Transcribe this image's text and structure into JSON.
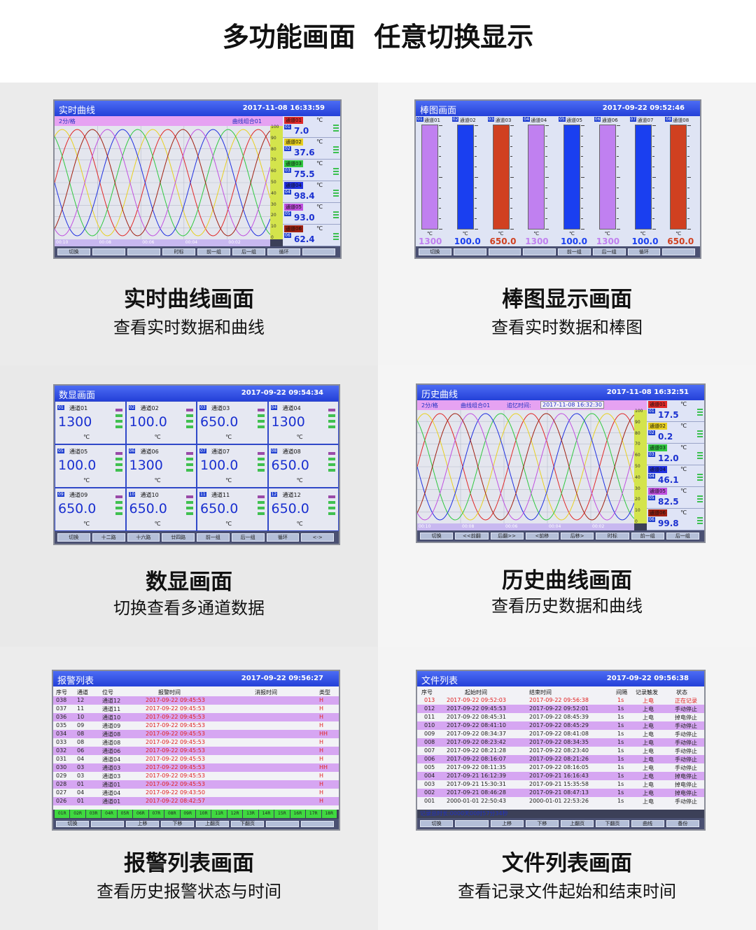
{
  "header": {
    "title": "多功能画面  任意切换显示"
  },
  "panels": [
    {
      "caption": "实时曲线画面",
      "subcaption": "查看实时数据和曲线",
      "screen": {
        "title": "实时曲线",
        "datetime": "2017-11-08 16:33:59",
        "grid_label": "2分/格",
        "group": "曲线组合01",
        "scale": [
          100,
          90,
          80,
          70,
          60,
          50,
          40,
          30,
          20,
          10,
          0
        ],
        "times": [
          "00:10",
          "00:08",
          "00:06",
          "00:04",
          "00:02"
        ],
        "channels": [
          {
            "number": "01",
            "name": "通道01",
            "unit": "℃",
            "value": "7.0",
            "color": "#e02828"
          },
          {
            "number": "02",
            "name": "通道02",
            "unit": "℃",
            "value": "37.6",
            "color": "#e8d020"
          },
          {
            "number": "03",
            "name": "通道03",
            "unit": "℃",
            "value": "75.5",
            "color": "#30c840"
          },
          {
            "number": "04",
            "name": "通道04",
            "unit": "℃",
            "value": "98.4",
            "color": "#2030e0"
          },
          {
            "number": "05",
            "name": "通道05",
            "unit": "℃",
            "value": "93.0",
            "color": "#c050e0"
          },
          {
            "number": "06",
            "name": "通道06",
            "unit": "℃",
            "value": "62.4",
            "color": "#a02010"
          }
        ],
        "buttons": [
          "切换",
          "时标",
          "前一组",
          "后一组",
          "循环"
        ]
      }
    },
    {
      "caption": "棒图显示画面",
      "subcaption": "查看实时数据和棒图",
      "screen": {
        "title": "棒图画面",
        "datetime": "2017-09-22 09:52:46",
        "channels": [
          {
            "number": "01",
            "name": "通道01",
            "unit": "℃",
            "value": "1300",
            "color": "#c080f0"
          },
          {
            "number": "02",
            "name": "通道02",
            "unit": "℃",
            "value": "100.0",
            "color": "#1a3ff0"
          },
          {
            "number": "03",
            "name": "通道03",
            "unit": "℃",
            "value": "650.0",
            "color": "#d04020"
          },
          {
            "number": "04",
            "name": "通道04",
            "unit": "℃",
            "value": "1300",
            "color": "#c080f0"
          },
          {
            "number": "05",
            "name": "通道05",
            "unit": "℃",
            "value": "100.0",
            "color": "#1a3ff0"
          },
          {
            "number": "06",
            "name": "通道06",
            "unit": "℃",
            "value": "1300",
            "color": "#c080f0"
          },
          {
            "number": "07",
            "name": "通道07",
            "unit": "℃",
            "value": "100.0",
            "color": "#1a3ff0"
          },
          {
            "number": "08",
            "name": "通道08",
            "unit": "℃",
            "value": "650.0",
            "color": "#d04020"
          }
        ],
        "buttons": [
          "切换",
          "前一组",
          "后一组",
          "循环"
        ]
      }
    },
    {
      "caption": "数显画面",
      "subcaption": "切换查看多通道数据",
      "screen": {
        "title": "数显画面",
        "datetime": "2017-09-22 09:54:34",
        "channels": [
          {
            "number": "01",
            "name": "通道01",
            "unit": "℃",
            "value": "1300"
          },
          {
            "number": "02",
            "name": "通道02",
            "unit": "℃",
            "value": "100.0"
          },
          {
            "number": "03",
            "name": "通道03",
            "unit": "℃",
            "value": "650.0"
          },
          {
            "number": "04",
            "name": "通道04",
            "unit": "℃",
            "value": "1300"
          },
          {
            "number": "05",
            "name": "通道05",
            "unit": "℃",
            "value": "100.0"
          },
          {
            "number": "06",
            "name": "通道06",
            "unit": "℃",
            "value": "1300"
          },
          {
            "number": "07",
            "name": "通道07",
            "unit": "℃",
            "value": "100.0"
          },
          {
            "number": "08",
            "name": "通道08",
            "unit": "℃",
            "value": "650.0"
          },
          {
            "number": "09",
            "name": "通道09",
            "unit": "℃",
            "value": "650.0"
          },
          {
            "number": "10",
            "name": "通道10",
            "unit": "℃",
            "value": "650.0"
          },
          {
            "number": "11",
            "name": "通道11",
            "unit": "℃",
            "value": "650.0"
          },
          {
            "number": "12",
            "name": "通道12",
            "unit": "℃",
            "value": "650.0"
          }
        ],
        "buttons": [
          "切换",
          "十二路",
          "十六路",
          "廿四路",
          "前一组",
          "后一组",
          "循环",
          "<->"
        ]
      }
    },
    {
      "caption": "历史曲线画面",
      "subcaption": "查看历史数据和曲线",
      "screen": {
        "title": "历史曲线",
        "datetime": "2017-11-08 16:32:51",
        "grid_label": "2分/格",
        "group": "曲线组合01",
        "recall_label": "追忆时间:",
        "recall_time": "2017-11-08 16:32:30",
        "scale": [
          100,
          90,
          80,
          70,
          60,
          50,
          40,
          30,
          20,
          10,
          0
        ],
        "times": [
          "00:10",
          "00:08",
          "00:06",
          "00:04",
          "00:02"
        ],
        "channels": [
          {
            "number": "01",
            "name": "通道01",
            "unit": "℃",
            "value": "17.5",
            "color": "#e02828"
          },
          {
            "number": "02",
            "name": "通道02",
            "unit": "℃",
            "value": "0.2",
            "color": "#e8d020"
          },
          {
            "number": "03",
            "name": "通道03",
            "unit": "℃",
            "value": "12.0",
            "color": "#30c840"
          },
          {
            "number": "04",
            "name": "通道04",
            "unit": "℃",
            "value": "46.1",
            "color": "#2030e0"
          },
          {
            "number": "05",
            "name": "通道05",
            "unit": "℃",
            "value": "82.5",
            "color": "#c050e0"
          },
          {
            "number": "06",
            "name": "通道06",
            "unit": "℃",
            "value": "99.8",
            "color": "#a02010"
          }
        ],
        "buttons": [
          "切换",
          "<<前翻",
          "后翻>>",
          "<前移",
          "后移>",
          "时标",
          "前一组",
          "后一组"
        ]
      }
    },
    {
      "caption": "报警列表画面",
      "subcaption": "查看历史报警状态与时间",
      "screen": {
        "title": "报警列表",
        "datetime": "2017-09-22 09:56:27",
        "columns": [
          "序号",
          "通道",
          "位号",
          "报警时间",
          "消报时间",
          "类型"
        ],
        "rows": [
          [
            "038",
            "12",
            "通道12",
            "2017-09-22 09:45:53",
            "H"
          ],
          [
            "037",
            "11",
            "通道11",
            "2017-09-22 09:45:53",
            "H"
          ],
          [
            "036",
            "10",
            "通道10",
            "2017-09-22 09:45:53",
            "H"
          ],
          [
            "035",
            "09",
            "通道09",
            "2017-09-22 09:45:53",
            "H"
          ],
          [
            "034",
            "08",
            "通道08",
            "2017-09-22 09:45:53",
            "HH"
          ],
          [
            "033",
            "08",
            "通道08",
            "2017-09-22 09:45:53",
            "H"
          ],
          [
            "032",
            "06",
            "通道06",
            "2017-09-22 09:45:53",
            "H"
          ],
          [
            "031",
            "04",
            "通道04",
            "2017-09-22 09:45:53",
            "H"
          ],
          [
            "030",
            "03",
            "通道03",
            "2017-09-22 09:45:53",
            "HH"
          ],
          [
            "029",
            "03",
            "通道03",
            "2017-09-22 09:45:53",
            "H"
          ],
          [
            "028",
            "01",
            "通道01",
            "2017-09-22 09:45:53",
            "H"
          ],
          [
            "027",
            "04",
            "通道04",
            "2017-09-22 09:43:50",
            "H"
          ],
          [
            "026",
            "01",
            "通道01",
            "2017-09-22 08:42:57",
            "H"
          ]
        ],
        "status": [
          "01R",
          "02R",
          "03R",
          "04R",
          "05R",
          "06R",
          "07R",
          "08R",
          "09R",
          "10R",
          "11R",
          "12R",
          "13R",
          "14R",
          "15R",
          "16R",
          "17R",
          "18R"
        ],
        "buttons": [
          "切换",
          "上移",
          "下移",
          "上翻页",
          "下翻页"
        ]
      }
    },
    {
      "caption": "文件列表画面",
      "subcaption": "查看记录文件起始和结束时间",
      "screen": {
        "title": "文件列表",
        "datetime": "2017-09-22 09:56:38",
        "columns": [
          "序号",
          "起始时间",
          "结束时间",
          "间隔",
          "记录触发",
          "状态"
        ],
        "rows": [
          [
            "013",
            "2017-09-22 09:52:03",
            "2017-09-22 09:56:38",
            "1s",
            "上电",
            "正在记录"
          ],
          [
            "012",
            "2017-09-22 09:45:53",
            "2017-09-22 09:52:01",
            "1s",
            "上电",
            "手动停止"
          ],
          [
            "011",
            "2017-09-22 08:45:31",
            "2017-09-22 08:45:39",
            "1s",
            "上电",
            "掉电停止"
          ],
          [
            "010",
            "2017-09-22 08:41:10",
            "2017-09-22 08:45:29",
            "1s",
            "上电",
            "手动停止"
          ],
          [
            "009",
            "2017-09-22 08:34:37",
            "2017-09-22 08:41:08",
            "1s",
            "上电",
            "手动停止"
          ],
          [
            "008",
            "2017-09-22 08:23:42",
            "2017-09-22 08:34:35",
            "1s",
            "上电",
            "手动停止"
          ],
          [
            "007",
            "2017-09-22 08:21:28",
            "2017-09-22 08:23:40",
            "1s",
            "上电",
            "手动停止"
          ],
          [
            "006",
            "2017-09-22 08:16:07",
            "2017-09-22 08:21:26",
            "1s",
            "上电",
            "手动停止"
          ],
          [
            "005",
            "2017-09-22 08:11:35",
            "2017-09-22 08:16:05",
            "1s",
            "上电",
            "手动停止"
          ],
          [
            "004",
            "2017-09-21 16:12:39",
            "2017-09-21 16:16:43",
            "1s",
            "上电",
            "掉电停止"
          ],
          [
            "003",
            "2017-09-21 15:30:31",
            "2017-09-21 15:35:58",
            "1s",
            "上电",
            "掉电停止"
          ],
          [
            "002",
            "2017-09-21 08:46:28",
            "2017-09-21 08:47:13",
            "1s",
            "上电",
            "掉电停止"
          ],
          [
            "001",
            "2000-01-01 22:50:43",
            "2000-01-01 22:53:26",
            "1s",
            "上电",
            "手动停止"
          ]
        ],
        "footer": "记录总时长:0000天00时57分34秒",
        "buttons": [
          "切换",
          "上移",
          "下移",
          "上翻页",
          "下翻页",
          "曲线",
          "备份"
        ]
      }
    }
  ]
}
